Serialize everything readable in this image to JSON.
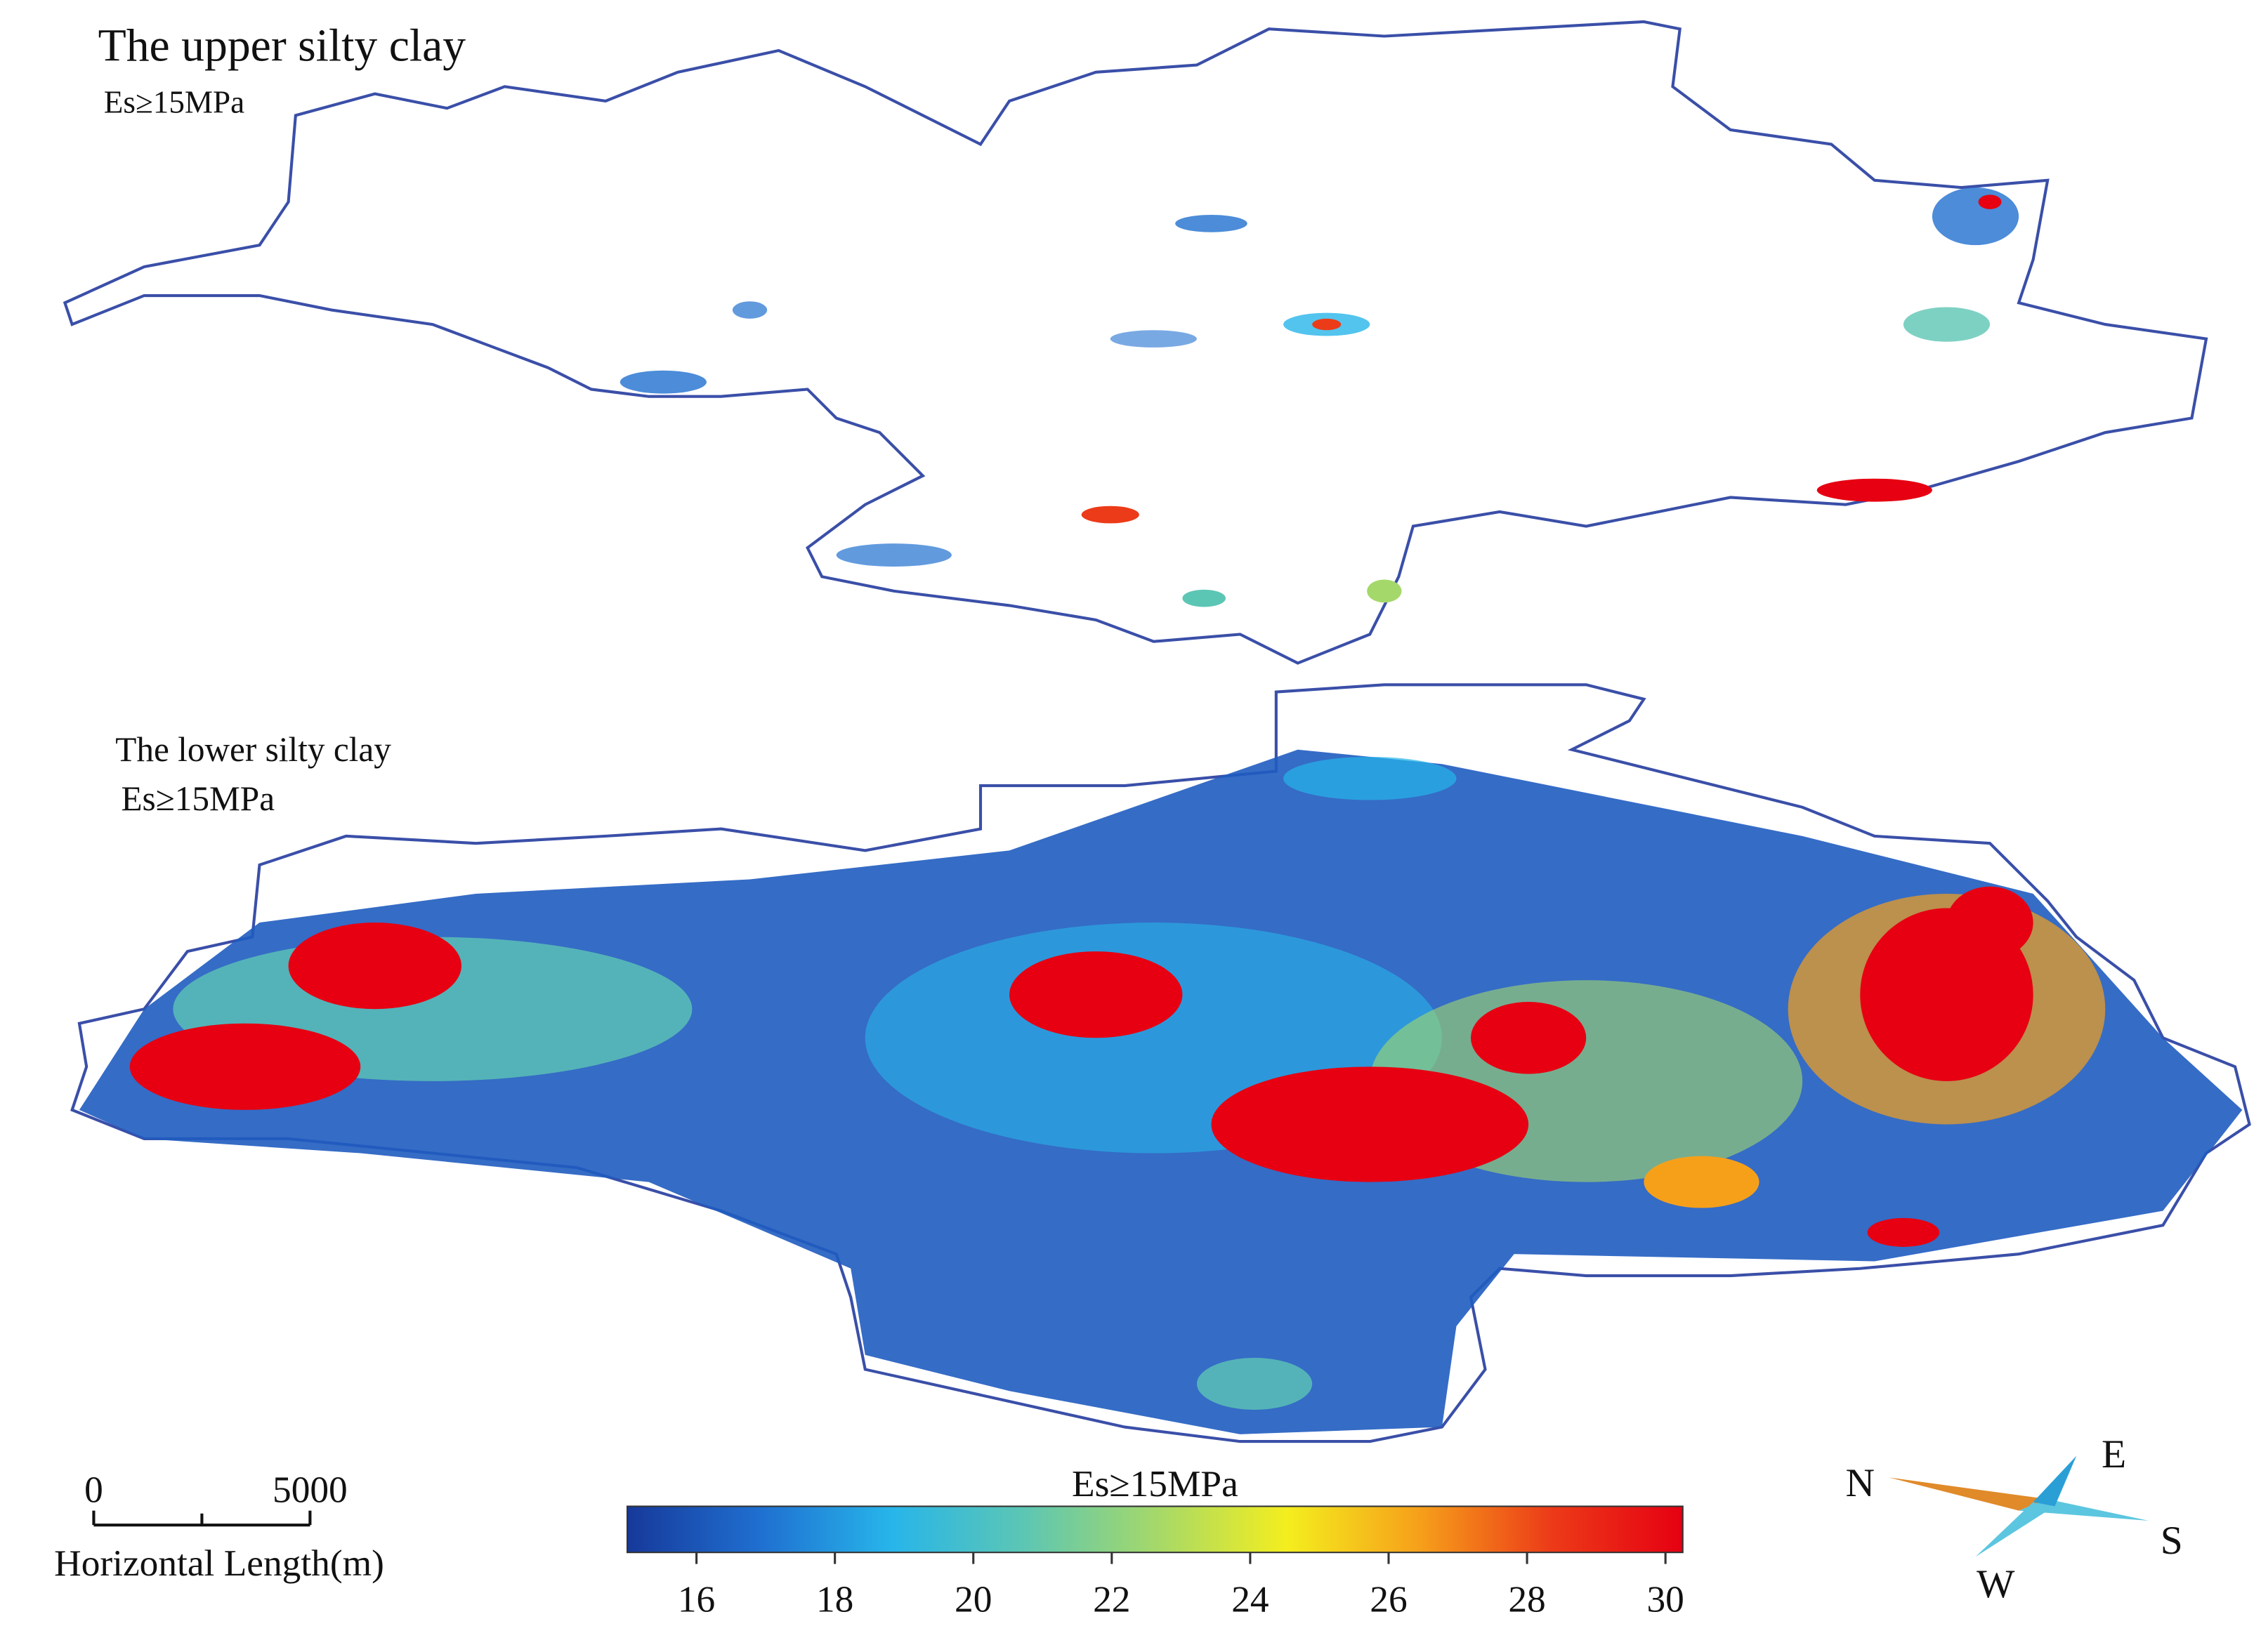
{
  "upper": {
    "title": "The upper silty clay",
    "subtitle": "Es≥15MPa"
  },
  "lower": {
    "title": "The lower silty clay",
    "subtitle": "Es≥15MPa"
  },
  "scale_bar": {
    "start": "0",
    "end": "5000",
    "label": "Horizontal Length(m)"
  },
  "colorbar": {
    "title": "Es≥15MPa",
    "range": [
      15,
      30.25
    ],
    "ticks": [
      16,
      18,
      20,
      22,
      24,
      26,
      28,
      30
    ],
    "colors": [
      "#16399a",
      "#1f6fd0",
      "#27b5ea",
      "#5cc6b4",
      "#a4d86a",
      "#f4ee1e",
      "#f6a01a",
      "#ec3b18",
      "#e60012"
    ]
  },
  "compass": {
    "north": "N",
    "east": "E",
    "south": "S",
    "west": "W"
  }
}
